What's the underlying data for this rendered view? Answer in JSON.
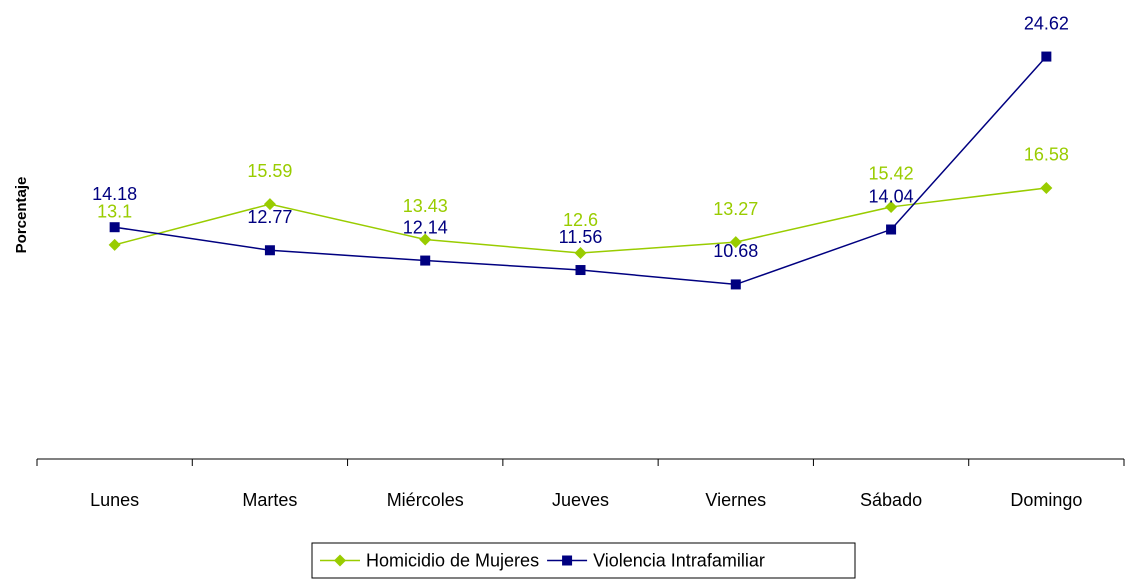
{
  "chart_data": {
    "type": "line",
    "y_label": "Porcentaje",
    "categories": [
      "Lunes",
      "Martes",
      "Miércoles",
      "Jueves",
      "Viernes",
      "Sábado",
      "Domingo"
    ],
    "series": [
      {
        "name": "Homicidio de Mujeres",
        "color": "#99cc00",
        "marker": "diamond",
        "values": [
          13.1,
          15.59,
          13.43,
          12.6,
          13.27,
          15.42,
          16.58
        ]
      },
      {
        "name": "Violencia Intrafamiliar",
        "color": "#000080",
        "marker": "square",
        "values": [
          14.18,
          12.77,
          12.14,
          11.56,
          10.68,
          14.04,
          24.62
        ]
      }
    ],
    "ylim": [
      0,
      26
    ],
    "legend": "bottom"
  }
}
